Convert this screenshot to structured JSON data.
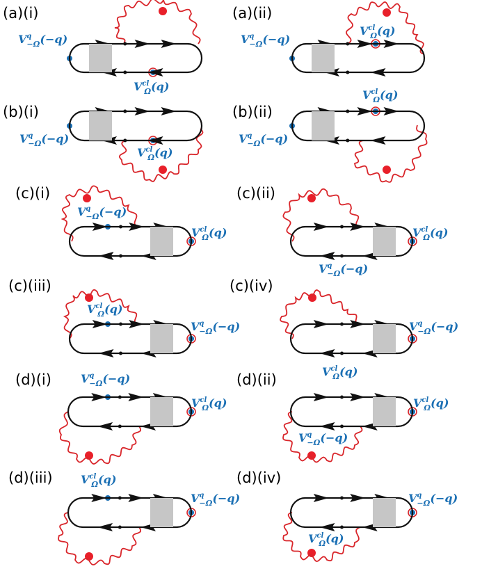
{
  "colors": {
    "line": "#111111",
    "wavy": "#d9262b",
    "vertex": "#1a6fb4",
    "shade": "#c6c6c6",
    "dot": "#e8202a"
  },
  "panels": [
    {
      "id": "a-i",
      "label": "(a)(i)",
      "left": {
        "sup": "q",
        "sub": "−Ω",
        "arg": "(−q)"
      },
      "right": {
        "sup": "cl",
        "sub": "Ω",
        "arg": "(q)"
      }
    },
    {
      "id": "a-ii",
      "label": "(a)(ii)",
      "left": {
        "sup": "q",
        "sub": "−Ω",
        "arg": "(−q)"
      },
      "right": {
        "sup": "cl",
        "sub": "Ω",
        "arg": "(q)"
      }
    },
    {
      "id": "b-i",
      "label": "(b)(i)",
      "left": {
        "sup": "q",
        "sub": "−Ω",
        "arg": "(−q)"
      },
      "right": {
        "sup": "cl",
        "sub": "Ω",
        "arg": "(q)"
      }
    },
    {
      "id": "b-ii",
      "label": "(b)(ii)",
      "left": {
        "sup": "q",
        "sub": "−Ω",
        "arg": "(−q)"
      },
      "right": {
        "sup": "cl",
        "sub": "Ω",
        "arg": "(q)"
      }
    },
    {
      "id": "c-i",
      "label": "(c)(i)",
      "left": {
        "sup": "q",
        "sub": "−Ω",
        "arg": "(−q)"
      },
      "right": {
        "sup": "cl",
        "sub": "Ω",
        "arg": "(q)"
      }
    },
    {
      "id": "c-ii",
      "label": "(c)(ii)",
      "left": {
        "sup": "q",
        "sub": "−Ω",
        "arg": "(−q)"
      },
      "right": {
        "sup": "cl",
        "sub": "Ω",
        "arg": "(q)"
      }
    },
    {
      "id": "c-iii",
      "label": "(c)(iii)",
      "left": {
        "sup": "cl",
        "sub": "Ω",
        "arg": "(q)"
      },
      "right": {
        "sup": "q",
        "sub": "−Ω",
        "arg": "(−q)"
      }
    },
    {
      "id": "c-iv",
      "label": "(c)(iv)",
      "left": {
        "sup": "cl",
        "sub": "Ω",
        "arg": "(q)"
      },
      "right": {
        "sup": "q",
        "sub": "−Ω",
        "arg": "(−q)"
      }
    },
    {
      "id": "d-i",
      "label": "(d)(i)",
      "left": {
        "sup": "q",
        "sub": "−Ω",
        "arg": "(−q)"
      },
      "right": {
        "sup": "cl",
        "sub": "Ω",
        "arg": "(q)"
      }
    },
    {
      "id": "d-ii",
      "label": "(d)(ii)",
      "left": {
        "sup": "q",
        "sub": "−Ω",
        "arg": "(−q)"
      },
      "right": {
        "sup": "cl",
        "sub": "Ω",
        "arg": "(q)"
      }
    },
    {
      "id": "d-iii",
      "label": "(d)(iii)",
      "left": {
        "sup": "cl",
        "sub": "Ω",
        "arg": "(q)"
      },
      "right": {
        "sup": "q",
        "sub": "−Ω",
        "arg": "(−q)"
      }
    },
    {
      "id": "d-iv",
      "label": "(d)(iv)",
      "left": {
        "sup": "cl",
        "sub": "Ω",
        "arg": "(q)"
      },
      "right": {
        "sup": "q",
        "sub": "−Ω",
        "arg": "(−q)"
      }
    }
  ]
}
